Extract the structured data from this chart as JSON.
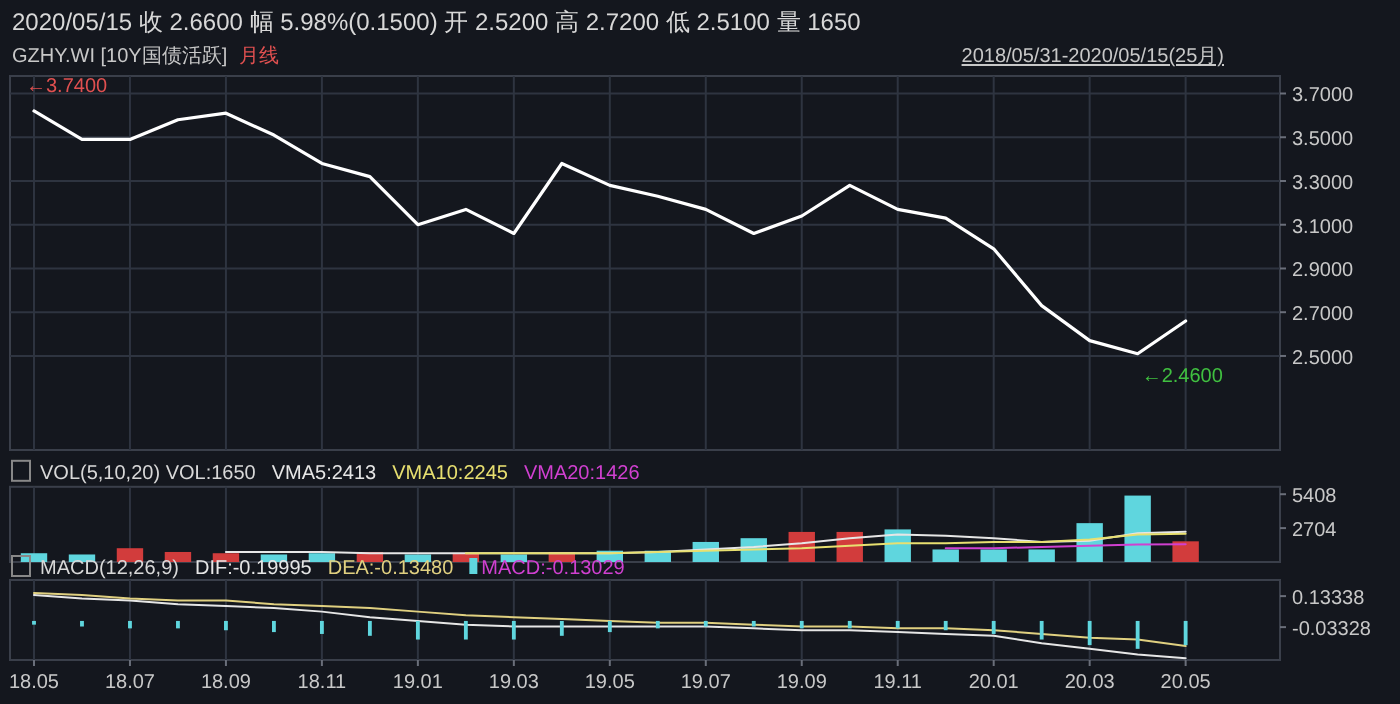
{
  "chart_data": [
    {
      "type": "line",
      "title": "2020/05/15  收 2.6600  幅 5.98%(0.1500)  开 2.5200  高 2.7200  低 2.5100  量 1650",
      "subtitle": "GZHY.WI [10Y国债活跃]",
      "annotations": [
        "月线",
        "2018/05/31-2020/05/15(25月)",
        "←3.7400",
        "←2.4600"
      ],
      "x": [
        "2018-05",
        "2018-06",
        "2018-07",
        "2018-08",
        "2018-09",
        "2018-10",
        "2018-11",
        "2018-12",
        "2019-01",
        "2019-02",
        "2019-03",
        "2019-04",
        "2019-05",
        "2019-06",
        "2019-07",
        "2019-08",
        "2019-09",
        "2019-10",
        "2019-11",
        "2019-12",
        "2020-01",
        "2020-02",
        "2020-03",
        "2020-04",
        "2020-05"
      ],
      "series": [
        {
          "color": "#ffffff",
          "values": [
            3.62,
            3.49,
            3.49,
            3.58,
            3.61,
            3.51,
            3.38,
            3.32,
            3.1,
            3.17,
            3.06,
            3.38,
            3.28,
            3.23,
            3.17,
            3.06,
            3.14,
            3.28,
            3.17,
            3.13,
            2.99,
            2.73,
            2.57,
            2.51,
            2.66
          ]
        }
      ],
      "xlim": [
        "2018-04-16",
        "2020-06-30"
      ],
      "ylim": [
        2.07,
        3.78
      ],
      "xticks": [
        {
          "value": "2018-05",
          "label": null
        },
        {
          "value": "2018-07",
          "label": null
        },
        {
          "value": "2018-09",
          "label": null
        },
        {
          "value": "2018-11",
          "label": null
        },
        {
          "value": "2019-01",
          "label": null
        },
        {
          "value": "2019-03",
          "label": null
        },
        {
          "value": "2019-05",
          "label": null
        },
        {
          "value": "2019-07",
          "label": null
        },
        {
          "value": "2019-09",
          "label": null
        },
        {
          "value": "2019-11",
          "label": null
        },
        {
          "value": "2020-01",
          "label": null
        },
        {
          "value": "2020-03",
          "label": null
        },
        {
          "value": "2020-05",
          "label": null
        }
      ],
      "yticks": [
        {
          "value": 2.5,
          "label": "2.5000"
        },
        {
          "value": 2.7,
          "label": "2.7000"
        },
        {
          "value": 2.9,
          "label": "2.9000"
        },
        {
          "value": 3.1,
          "label": "3.1000"
        },
        {
          "value": 3.3,
          "label": "3.3000"
        },
        {
          "value": 3.5,
          "label": "3.5000"
        },
        {
          "value": 3.7,
          "label": "3.7000"
        }
      ],
      "grid": true,
      "tick_labels": "y",
      "line_style": "solid",
      "marker": "none"
    },
    {
      "type": "bar",
      "title": "VOL(5,10,20) VOL:1650",
      "legend": "top left",
      "x": [
        "2018-05",
        "2018-06",
        "2018-07",
        "2018-08",
        "2018-09",
        "2018-10",
        "2018-11",
        "2018-12",
        "2019-01",
        "2019-02",
        "2019-03",
        "2019-04",
        "2019-05",
        "2019-06",
        "2019-07",
        "2019-08",
        "2019-09",
        "2019-10",
        "2019-11",
        "2019-12",
        "2020-01",
        "2020-02",
        "2020-03",
        "2020-04",
        "2020-05"
      ],
      "series": [
        {
          "colors": [
            "#5fd6de",
            "#5fd6de",
            "#d23c3c",
            "#d23c3c",
            "#d23c3c",
            "#5fd6de",
            "#5fd6de",
            "#d23c3c",
            "#5fd6de",
            "#d23c3c",
            "#5fd6de",
            "#d23c3c",
            "#5fd6de",
            "#5fd6de",
            "#5fd6de",
            "#5fd6de",
            "#d23c3c",
            "#d23c3c",
            "#5fd6de",
            "#5fd6de",
            "#5fd6de",
            "#5fd6de",
            "#5fd6de",
            "#5fd6de",
            "#d23c3c"
          ],
          "values": [
            700,
            600,
            1100,
            800,
            700,
            600,
            700,
            800,
            600,
            700,
            600,
            800,
            900,
            900,
            1600,
            1900,
            2400,
            2400,
            2600,
            1000,
            1000,
            1000,
            3100,
            5300,
            1650
          ]
        },
        {
          "type": "line",
          "name": "VMA5:2413",
          "color": "#e6e6e6",
          "values": [
            null,
            null,
            null,
            null,
            800,
            800,
            800,
            700,
            700,
            700,
            700,
            700,
            700,
            800,
            1000,
            1200,
            1500,
            1900,
            2200,
            2100,
            1900,
            1600,
            1700,
            2300,
            2413
          ]
        },
        {
          "type": "line",
          "name": "VMA10:2245",
          "color": "#e8e070",
          "values": [
            null,
            null,
            null,
            null,
            null,
            null,
            null,
            null,
            null,
            700,
            700,
            700,
            700,
            800,
            900,
            1000,
            1100,
            1300,
            1500,
            1500,
            1600,
            1600,
            1800,
            2200,
            2245
          ]
        },
        {
          "type": "line",
          "name": "VMA20:1426",
          "color": "#d040d0",
          "values": [
            null,
            null,
            null,
            null,
            null,
            null,
            null,
            null,
            null,
            null,
            null,
            null,
            null,
            null,
            null,
            null,
            null,
            null,
            null,
            1100,
            1100,
            1200,
            1300,
            1400,
            1426
          ]
        }
      ],
      "xlim": [
        "2018-04-16",
        "2020-06-30"
      ],
      "ylim": [
        0,
        6000
      ],
      "xticks": [
        {
          "value": "2018-05",
          "label": null
        },
        {
          "value": "2018-07",
          "label": null
        },
        {
          "value": "2018-09",
          "label": null
        },
        {
          "value": "2018-11",
          "label": null
        },
        {
          "value": "2019-01",
          "label": null
        },
        {
          "value": "2019-03",
          "label": null
        },
        {
          "value": "2019-05",
          "label": null
        },
        {
          "value": "2019-07",
          "label": null
        },
        {
          "value": "2019-09",
          "label": null
        },
        {
          "value": "2019-11",
          "label": null
        },
        {
          "value": "2020-01",
          "label": null
        },
        {
          "value": "2020-03",
          "label": null
        },
        {
          "value": "2020-05",
          "label": null
        }
      ],
      "yticks": [
        2704,
        5408
      ],
      "grid": "x",
      "tick_labels": "y"
    },
    {
      "type": "line",
      "title": "MACD(12,26,9)",
      "legend": "top left",
      "x": [
        "2018-05",
        "2018-06",
        "2018-07",
        "2018-08",
        "2018-09",
        "2018-10",
        "2018-11",
        "2018-12",
        "2019-01",
        "2019-02",
        "2019-03",
        "2019-04",
        "2019-05",
        "2019-06",
        "2019-07",
        "2019-08",
        "2019-09",
        "2019-10",
        "2019-11",
        "2019-12",
        "2020-01",
        "2020-02",
        "2020-03",
        "2020-04",
        "2020-05"
      ],
      "series": [
        {
          "name": "DIF:-0.19995",
          "color": "#e6e6e6",
          "values": [
            0.14,
            0.12,
            0.11,
            0.09,
            0.08,
            0.07,
            0.05,
            0.02,
            0,
            -0.02,
            -0.03,
            -0.03,
            -0.03,
            -0.03,
            -0.03,
            -0.04,
            -0.05,
            -0.05,
            -0.06,
            -0.07,
            -0.08,
            -0.12,
            -0.15,
            -0.18,
            -0.19995
          ]
        },
        {
          "name": "DEA:-0.13480",
          "color": "#e0d080",
          "values": [
            0.15,
            0.14,
            0.12,
            0.11,
            0.11,
            0.09,
            0.08,
            0.07,
            0.05,
            0.03,
            0.02,
            0.01,
            0,
            -0.01,
            -0.01,
            -0.02,
            -0.03,
            -0.03,
            -0.04,
            -0.04,
            -0.05,
            -0.07,
            -0.09,
            -0.1,
            -0.1348
          ]
        },
        {
          "type": "bar",
          "name": "MACD:-0.13029",
          "color": "#d040d0",
          "colors": [
            "#5fd6de",
            "#5fd6de",
            "#5fd6de",
            "#5fd6de",
            "#5fd6de",
            "#5fd6de",
            "#5fd6de",
            "#5fd6de",
            "#5fd6de",
            "#5fd6de",
            "#5fd6de",
            "#5fd6de",
            "#5fd6de",
            "#5fd6de",
            "#5fd6de",
            "#5fd6de",
            "#5fd6de",
            "#5fd6de",
            "#5fd6de",
            "#5fd6de",
            "#5fd6de",
            "#5fd6de",
            "#5fd6de",
            "#5fd6de",
            "#5fd6de"
          ],
          "values": [
            -0.02,
            -0.03,
            -0.04,
            -0.04,
            -0.05,
            -0.06,
            -0.07,
            -0.08,
            -0.1,
            -0.1,
            -0.1,
            -0.08,
            -0.06,
            -0.04,
            -0.03,
            -0.03,
            -0.04,
            -0.04,
            -0.04,
            -0.05,
            -0.07,
            -0.1,
            -0.13,
            -0.15,
            -0.13029
          ]
        }
      ],
      "xlim": [
        "2018-04-16",
        "2020-06-30"
      ],
      "ylim": [
        -0.21,
        0.22
      ],
      "xticks": [
        {
          "value": "2018-05",
          "label": "18.05"
        },
        {
          "value": "2018-07",
          "label": "18.07"
        },
        {
          "value": "2018-09",
          "label": "18.09"
        },
        {
          "value": "2018-11",
          "label": "18.11"
        },
        {
          "value": "2019-01",
          "label": "19.01"
        },
        {
          "value": "2019-03",
          "label": "19.03"
        },
        {
          "value": "2019-05",
          "label": "19.05"
        },
        {
          "value": "2019-07",
          "label": "19.07"
        },
        {
          "value": "2019-09",
          "label": "19.09"
        },
        {
          "value": "2019-11",
          "label": "19.11"
        },
        {
          "value": "2020-01",
          "label": "20.01"
        },
        {
          "value": "2020-03",
          "label": "20.03"
        },
        {
          "value": "2020-05",
          "label": "20.05"
        }
      ],
      "yticks": [
        -0.03328,
        0.13338
      ],
      "grid": "x"
    }
  ]
}
